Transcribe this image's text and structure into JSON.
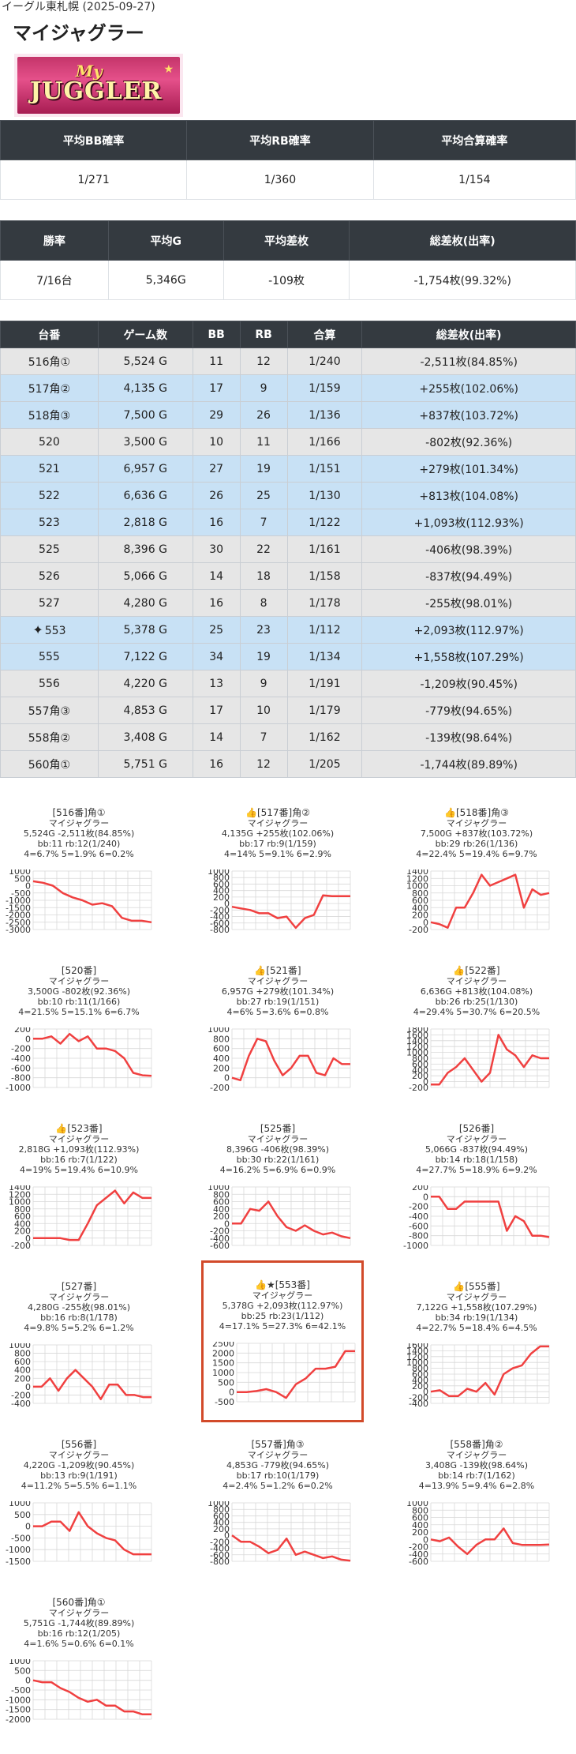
{
  "header": {
    "subtitle": "イーグル東札幌 (2025-09-27)",
    "title": "マイジャグラー",
    "logo_text_top": "My",
    "logo_text_main": "JUGGLER"
  },
  "summary1": {
    "headers": [
      "平均BB確率",
      "平均RB確率",
      "平均合算確率"
    ],
    "values": [
      "1/271",
      "1/360",
      "1/154"
    ]
  },
  "summary2": {
    "headers": [
      "勝率",
      "平均G",
      "平均差枚",
      "総差枚(出率)"
    ],
    "values": [
      "7/16台",
      "5,346G",
      "-109枚",
      "-1,754枚(99.32%)"
    ]
  },
  "machines_table": {
    "headers": [
      "台番",
      "ゲーム数",
      "BB",
      "RB",
      "合算",
      "総差枚(出率)"
    ],
    "rows": [
      {
        "no": "516角①",
        "games": "5,524 G",
        "bb": "11",
        "rb": "12",
        "total": "1/240",
        "diff": "-2,511枚(84.85%)",
        "plus": false,
        "star": false
      },
      {
        "no": "517角②",
        "games": "4,135 G",
        "bb": "17",
        "rb": "9",
        "total": "1/159",
        "diff": "+255枚(102.06%)",
        "plus": true,
        "star": false
      },
      {
        "no": "518角③",
        "games": "7,500 G",
        "bb": "29",
        "rb": "26",
        "total": "1/136",
        "diff": "+837枚(103.72%)",
        "plus": true,
        "star": false
      },
      {
        "no": "520",
        "games": "3,500 G",
        "bb": "10",
        "rb": "11",
        "total": "1/166",
        "diff": "-802枚(92.36%)",
        "plus": false,
        "star": false
      },
      {
        "no": "521",
        "games": "6,957 G",
        "bb": "27",
        "rb": "19",
        "total": "1/151",
        "diff": "+279枚(101.34%)",
        "plus": true,
        "star": false
      },
      {
        "no": "522",
        "games": "6,636 G",
        "bb": "26",
        "rb": "25",
        "total": "1/130",
        "diff": "+813枚(104.08%)",
        "plus": true,
        "star": false
      },
      {
        "no": "523",
        "games": "2,818 G",
        "bb": "16",
        "rb": "7",
        "total": "1/122",
        "diff": "+1,093枚(112.93%)",
        "plus": true,
        "star": false
      },
      {
        "no": "525",
        "games": "8,396 G",
        "bb": "30",
        "rb": "22",
        "total": "1/161",
        "diff": "-406枚(98.39%)",
        "plus": false,
        "star": false
      },
      {
        "no": "526",
        "games": "5,066 G",
        "bb": "14",
        "rb": "18",
        "total": "1/158",
        "diff": "-837枚(94.49%)",
        "plus": false,
        "star": false
      },
      {
        "no": "527",
        "games": "4,280 G",
        "bb": "16",
        "rb": "8",
        "total": "1/178",
        "diff": "-255枚(98.01%)",
        "plus": false,
        "star": false
      },
      {
        "no": "553",
        "games": "5,378 G",
        "bb": "25",
        "rb": "23",
        "total": "1/112",
        "diff": "+2,093枚(112.97%)",
        "plus": true,
        "star": true
      },
      {
        "no": "555",
        "games": "7,122 G",
        "bb": "34",
        "rb": "19",
        "total": "1/134",
        "diff": "+1,558枚(107.29%)",
        "plus": true,
        "star": false
      },
      {
        "no": "556",
        "games": "4,220 G",
        "bb": "13",
        "rb": "9",
        "total": "1/191",
        "diff": "-1,209枚(90.45%)",
        "plus": false,
        "star": false
      },
      {
        "no": "557角③",
        "games": "4,853 G",
        "bb": "17",
        "rb": "10",
        "total": "1/179",
        "diff": "-779枚(94.65%)",
        "plus": false,
        "star": false
      },
      {
        "no": "558角②",
        "games": "3,408 G",
        "bb": "14",
        "rb": "7",
        "total": "1/162",
        "diff": "-139枚(98.64%)",
        "plus": false,
        "star": false
      },
      {
        "no": "560角①",
        "games": "5,751 G",
        "bb": "16",
        "rb": "12",
        "total": "1/205",
        "diff": "-1,744枚(89.89%)",
        "plus": false,
        "star": false
      }
    ]
  },
  "cards": [
    {
      "title": "[516番]角①",
      "name": "マイジャグラー",
      "line1": "5,524G -2,511枚(84.85%)",
      "line2": "bb:11 rb:12(1/240)",
      "line3": "4=6.7% 5=1.9% 6=0.2%",
      "thumb": false,
      "star": false,
      "highlight": false,
      "chart_data": {
        "type": "line",
        "y": [
          300,
          200,
          0,
          -500,
          -800,
          -1000,
          -1300,
          -1200,
          -1400,
          -2200,
          -2400,
          -2400,
          -2500
        ],
        "yticks": [
          1000,
          500,
          0,
          -500,
          -1000,
          -1500,
          -2000,
          -2500,
          -3000
        ],
        "ylim": [
          -3000,
          1000
        ]
      }
    },
    {
      "title": "[517番]角②",
      "name": "マイジャグラー",
      "line1": "4,135G +255枚(102.06%)",
      "line2": "bb:17 rb:9(1/159)",
      "line3": "4=14% 5=9.1% 6=2.9%",
      "thumb": true,
      "star": false,
      "highlight": false,
      "chart_data": {
        "type": "line",
        "y": [
          -100,
          -150,
          -200,
          -300,
          -300,
          -450,
          -400,
          -750,
          -450,
          -350,
          250,
          230,
          230,
          230
        ],
        "yticks": [
          1000,
          800,
          600,
          400,
          200,
          0,
          -200,
          -400,
          -600,
          -800
        ],
        "ylim": [
          -800,
          1000
        ]
      }
    },
    {
      "title": "[518番]角③",
      "name": "マイジャグラー",
      "line1": "7,500G +837枚(103.72%)",
      "line2": "bb:29 rb:26(1/136)",
      "line3": "4=22.4% 5=19.4% 6=9.7%",
      "thumb": true,
      "star": false,
      "highlight": false,
      "chart_data": {
        "type": "line",
        "y": [
          0,
          -50,
          -150,
          400,
          400,
          800,
          1300,
          1000,
          1100,
          1200,
          1300,
          400,
          900,
          750,
          800
        ],
        "yticks": [
          1400,
          1200,
          1000,
          800,
          600,
          400,
          200,
          0,
          -200
        ],
        "ylim": [
          -200,
          1400
        ]
      }
    },
    {
      "title": "[520番]",
      "name": "マイジャグラー",
      "line1": "3,500G -802枚(92.36%)",
      "line2": "bb:10 rb:11(1/166)",
      "line3": "4=21.5% 5=15.1% 6=6.7%",
      "thumb": false,
      "star": false,
      "highlight": false,
      "chart_data": {
        "type": "line",
        "y": [
          0,
          0,
          50,
          -100,
          100,
          -50,
          50,
          -200,
          -200,
          -250,
          -400,
          -700,
          -750,
          -760
        ],
        "yticks": [
          200,
          0,
          -200,
          -400,
          -600,
          -800,
          -1000
        ],
        "ylim": [
          -1000,
          200
        ]
      }
    },
    {
      "title": "[521番]",
      "name": "マイジャグラー",
      "line1": "6,957G +279枚(101.34%)",
      "line2": "bb:27 rb:19(1/151)",
      "line3": "4=6% 5=3.6% 6=0.8%",
      "thumb": true,
      "star": false,
      "highlight": false,
      "chart_data": {
        "type": "line",
        "y": [
          0,
          -50,
          450,
          800,
          750,
          350,
          50,
          200,
          450,
          450,
          100,
          50,
          400,
          280,
          280
        ],
        "yticks": [
          1000,
          800,
          600,
          400,
          200,
          0,
          -200
        ],
        "ylim": [
          -200,
          1000
        ]
      }
    },
    {
      "title": "[522番]",
      "name": "マイジャグラー",
      "line1": "6,636G +813枚(104.08%)",
      "line2": "bb:26 rb:25(1/130)",
      "line3": "4=29.4% 5=30.7% 6=20.5%",
      "thumb": true,
      "star": false,
      "highlight": false,
      "chart_data": {
        "type": "line",
        "y": [
          -100,
          -100,
          300,
          500,
          800,
          400,
          0,
          300,
          1600,
          1100,
          900,
          500,
          900,
          800,
          800
        ],
        "yticks": [
          1800,
          1600,
          1400,
          1200,
          1000,
          800,
          600,
          400,
          200,
          0,
          -200
        ],
        "ylim": [
          -200,
          1800
        ]
      }
    },
    {
      "title": "[523番]",
      "name": "マイジャグラー",
      "line1": "2,818G +1,093枚(112.93%)",
      "line2": "bb:16 rb:7(1/122)",
      "line3": "4=19% 5=19.4% 6=10.9%",
      "thumb": true,
      "star": false,
      "highlight": false,
      "chart_data": {
        "type": "line",
        "y": [
          0,
          0,
          0,
          0,
          -50,
          -50,
          400,
          900,
          1100,
          1300,
          950,
          1250,
          1100,
          1100
        ],
        "yticks": [
          1400,
          1200,
          1000,
          800,
          600,
          400,
          200,
          0,
          -200
        ],
        "ylim": [
          -200,
          1400
        ]
      }
    },
    {
      "title": "[525番]",
      "name": "マイジャグラー",
      "line1": "8,396G -406枚(98.39%)",
      "line2": "bb:30 rb:22(1/161)",
      "line3": "4=16.2% 5=6.9% 6=0.9%",
      "thumb": false,
      "star": false,
      "highlight": false,
      "chart_data": {
        "type": "line",
        "y": [
          0,
          0,
          400,
          350,
          600,
          200,
          -100,
          -200,
          -50,
          -200,
          -300,
          -250,
          -350,
          -400
        ],
        "yticks": [
          1000,
          800,
          600,
          400,
          200,
          0,
          -200,
          -400,
          -600
        ],
        "ylim": [
          -600,
          1000
        ]
      }
    },
    {
      "title": "[526番]",
      "name": "マイジャグラー",
      "line1": "5,066G -837枚(94.49%)",
      "line2": "bb:14 rb:18(1/158)",
      "line3": "4=27.7% 5=18.9% 6=9.2%",
      "thumb": false,
      "star": false,
      "highlight": false,
      "chart_data": {
        "type": "line",
        "y": [
          0,
          0,
          -250,
          -250,
          -100,
          -100,
          -100,
          -100,
          -100,
          -700,
          -400,
          -500,
          -800,
          -800,
          -830
        ],
        "yticks": [
          200,
          0,
          -200,
          -400,
          -600,
          -800,
          -1000
        ],
        "ylim": [
          -1000,
          200
        ]
      }
    },
    {
      "title": "[527番]",
      "name": "マイジャグラー",
      "line1": "4,280G -255枚(98.01%)",
      "line2": "bb:16 rb:8(1/178)",
      "line3": "4=9.8% 5=5.2% 6=1.2%",
      "thumb": false,
      "star": false,
      "highlight": false,
      "chart_data": {
        "type": "line",
        "y": [
          0,
          0,
          200,
          -100,
          200,
          400,
          200,
          0,
          -300,
          50,
          50,
          -200,
          -200,
          -250,
          -250
        ],
        "yticks": [
          1000,
          800,
          600,
          400,
          200,
          0,
          -200,
          -400
        ],
        "ylim": [
          -400,
          1000
        ]
      }
    },
    {
      "title": "[553番]",
      "name": "マイジャグラー",
      "line1": "5,378G +2,093枚(112.97%)",
      "line2": "bb:25 rb:23(1/112)",
      "line3": "4=17.1% 5=27.3% 6=42.1%",
      "thumb": true,
      "star": true,
      "highlight": true,
      "chart_data": {
        "type": "line",
        "y": [
          0,
          0,
          50,
          150,
          0,
          -300,
          400,
          700,
          1200,
          1200,
          1300,
          2100,
          2100
        ],
        "yticks": [
          2500,
          2000,
          1500,
          1000,
          500,
          0,
          -500
        ],
        "ylim": [
          -500,
          2500
        ]
      }
    },
    {
      "title": "[555番]",
      "name": "マイジャグラー",
      "line1": "7,122G +1,558枚(107.29%)",
      "line2": "bb:34 rb:19(1/134)",
      "line3": "4=22.7% 5=18.4% 6=4.5%",
      "thumb": true,
      "star": false,
      "highlight": false,
      "chart_data": {
        "type": "line",
        "y": [
          0,
          50,
          -150,
          -150,
          100,
          0,
          300,
          -100,
          600,
          800,
          900,
          1300,
          1550,
          1550
        ],
        "yticks": [
          1600,
          1400,
          1200,
          1000,
          800,
          600,
          400,
          200,
          0,
          -200,
          -400
        ],
        "ylim": [
          -400,
          1600
        ]
      }
    },
    {
      "title": "[556番]",
      "name": "マイジャグラー",
      "line1": "4,220G -1,209枚(90.45%)",
      "line2": "bb:13 rb:9(1/191)",
      "line3": "4=11.2% 5=5.5% 6=1.1%",
      "thumb": false,
      "star": false,
      "highlight": false,
      "chart_data": {
        "type": "line",
        "y": [
          0,
          0,
          200,
          200,
          -200,
          600,
          0,
          -300,
          -500,
          -600,
          -1000,
          -1200,
          -1200,
          -1200
        ],
        "yticks": [
          1000,
          500,
          0,
          -500,
          -1000,
          -1500
        ],
        "ylim": [
          -1500,
          1000
        ]
      }
    },
    {
      "title": "[557番]角③",
      "name": "マイジャグラー",
      "line1": "4,853G -779枚(94.65%)",
      "line2": "bb:17 rb:10(1/179)",
      "line3": "4=2.4% 5=1.2% 6=0.2%",
      "thumb": false,
      "star": false,
      "highlight": false,
      "chart_data": {
        "type": "line",
        "y": [
          0,
          -200,
          -200,
          -350,
          -550,
          -450,
          -100,
          -600,
          -500,
          -600,
          -700,
          -650,
          -750,
          -780
        ],
        "yticks": [
          1000,
          800,
          600,
          400,
          200,
          0,
          -200,
          -400,
          -600,
          -800
        ],
        "ylim": [
          -800,
          1000
        ]
      }
    },
    {
      "title": "[558番]角②",
      "name": "マイジャグラー",
      "line1": "3,408G -139枚(98.64%)",
      "line2": "bb:14 rb:7(1/162)",
      "line3": "4=13.9% 5=9.4% 6=2.8%",
      "thumb": false,
      "star": false,
      "highlight": false,
      "chart_data": {
        "type": "line",
        "y": [
          0,
          -50,
          50,
          -200,
          -400,
          -150,
          0,
          0,
          300,
          -100,
          -150,
          -150,
          -150,
          -140
        ],
        "yticks": [
          1000,
          800,
          600,
          400,
          200,
          0,
          -200,
          -400,
          -600
        ],
        "ylim": [
          -600,
          1000
        ]
      }
    },
    {
      "title": "[560番]角①",
      "name": "マイジャグラー",
      "line1": "5,751G -1,744枚(89.89%)",
      "line2": "bb:16 rb:12(1/205)",
      "line3": "4=1.6% 5=0.6% 6=0.1%",
      "thumb": false,
      "star": false,
      "highlight": false,
      "chart_data": {
        "type": "line",
        "y": [
          0,
          -100,
          -100,
          -400,
          -600,
          -900,
          -1100,
          -1000,
          -1300,
          -1300,
          -1600,
          -1600,
          -1750,
          -1750
        ],
        "yticks": [
          1000,
          500,
          0,
          -500,
          -1000,
          -1500,
          -2000
        ],
        "ylim": [
          -2000,
          1000
        ]
      }
    }
  ],
  "icons": {
    "thumb": "👍",
    "star": "★",
    "sparkle": "✦"
  },
  "colors": {
    "header_bg": "#343a40",
    "plus_row": "#c8e1f5",
    "minus_row": "#e6e6e6",
    "line": "#f04040",
    "highlight": "#d24a2a"
  }
}
